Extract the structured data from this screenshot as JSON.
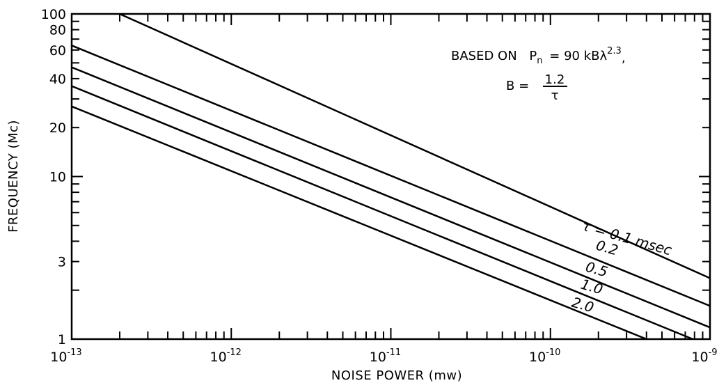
{
  "chart_data": {
    "type": "line",
    "xlabel": "NOISE POWER (mw)",
    "ylabel": "FREQUENCY (Mc)",
    "x_scale": "log",
    "y_scale": "log",
    "xlim": [
      1e-13,
      1e-09
    ],
    "ylim": [
      1,
      100
    ],
    "x_ticks": [
      {
        "value": 1e-13,
        "base": "10",
        "exp": "-13"
      },
      {
        "value": 1e-12,
        "base": "10",
        "exp": "-12"
      },
      {
        "value": 1e-11,
        "base": "10",
        "exp": "-11"
      },
      {
        "value": 1e-10,
        "base": "10",
        "exp": "-10"
      },
      {
        "value": 1e-09,
        "base": "10",
        "exp": "-9"
      }
    ],
    "y_ticks": [
      {
        "value": 100,
        "label": "100"
      },
      {
        "value": 80,
        "label": "80"
      },
      {
        "value": 60,
        "label": "60"
      },
      {
        "value": 40,
        "label": "40"
      },
      {
        "value": 20,
        "label": "20"
      },
      {
        "value": 10,
        "label": "10"
      },
      {
        "value": 3,
        "label": "3"
      },
      {
        "value": 1,
        "label": "1"
      }
    ],
    "grid": false,
    "note": {
      "line1_prefix": "BASED ON",
      "pn_symbol": "P",
      "pn_sub": "n",
      "pn_rhs": "= 90 kBλ",
      "pn_exp": "2.3",
      "comma": ",",
      "b_lhs": "B =",
      "b_num": "1.2",
      "b_den": "τ"
    },
    "series": [
      {
        "name": "τ = 0.1 msec",
        "x": [
          2e-13,
          1e-09
        ],
        "y": [
          100,
          2.37
        ]
      },
      {
        "name": "0.2",
        "x": [
          1e-13,
          1e-09
        ],
        "y": [
          64,
          1.6
        ]
      },
      {
        "name": "0.5",
        "x": [
          1e-13,
          1e-09
        ],
        "y": [
          47,
          1.18
        ]
      },
      {
        "name": "1.0",
        "x": [
          1e-13,
          7.8e-10
        ],
        "y": [
          36,
          1
        ]
      },
      {
        "name": "2.0",
        "x": [
          1e-13,
          4e-10
        ],
        "y": [
          27,
          1
        ]
      }
    ]
  }
}
